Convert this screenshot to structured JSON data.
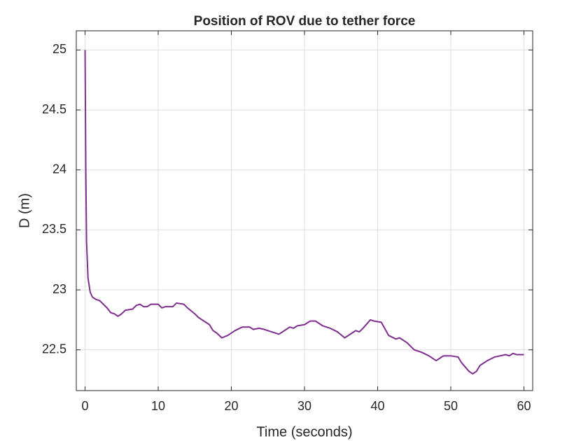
{
  "chart_data": {
    "type": "line",
    "title": "Position of ROV due to tether force",
    "xlabel": "Time (seconds)",
    "ylabel": "D (m)",
    "x": [
      0,
      0.1,
      0.2,
      0.4,
      0.7,
      1,
      1.5,
      2,
      2.5,
      3,
      3.5,
      4,
      4.5,
      5,
      5.5,
      6.5,
      7,
      7.5,
      8,
      8.5,
      9,
      10,
      10.5,
      11,
      12,
      12.5,
      13.5,
      14,
      15,
      15.5,
      16,
      17,
      17.5,
      18,
      18.7,
      19.5,
      20.5,
      21.5,
      22.5,
      23,
      23.8,
      24.5,
      25.5,
      26.5,
      27.5,
      28,
      28.5,
      29,
      30,
      30.8,
      31.5,
      32.5,
      33.5,
      34.5,
      35.5,
      36.5,
      37,
      37.5,
      38,
      39,
      39.5,
      40.5,
      41.5,
      42.5,
      43,
      44,
      45,
      46,
      47,
      48,
      48.5,
      49,
      50,
      51,
      51.5,
      52.5,
      53,
      53.5,
      54,
      55,
      56,
      57.5,
      58,
      58.5,
      59,
      60
    ],
    "series": [
      {
        "name": "D",
        "color": "#7e2f8e",
        "values": [
          25,
          24.0,
          23.4,
          23.1,
          22.98,
          22.94,
          22.92,
          22.91,
          22.88,
          22.85,
          22.81,
          22.8,
          22.78,
          22.8,
          22.83,
          22.84,
          22.87,
          22.88,
          22.86,
          22.86,
          22.88,
          22.88,
          22.85,
          22.86,
          22.86,
          22.89,
          22.88,
          22.85,
          22.8,
          22.77,
          22.75,
          22.71,
          22.66,
          22.64,
          22.6,
          22.62,
          22.66,
          22.69,
          22.69,
          22.67,
          22.68,
          22.67,
          22.65,
          22.63,
          22.67,
          22.69,
          22.68,
          22.7,
          22.71,
          22.74,
          22.74,
          22.7,
          22.68,
          22.65,
          22.6,
          22.64,
          22.66,
          22.65,
          22.68,
          22.75,
          22.74,
          22.73,
          22.62,
          22.59,
          22.6,
          22.56,
          22.5,
          22.48,
          22.45,
          22.41,
          22.43,
          22.45,
          22.45,
          22.44,
          22.39,
          22.32,
          22.3,
          22.32,
          22.37,
          22.41,
          22.44,
          22.46,
          22.45,
          22.47,
          22.46,
          22.46
        ]
      }
    ],
    "xlim": [
      -1.2,
      61.2
    ],
    "ylim": [
      22.16,
      25.16
    ],
    "xticks": [
      0,
      10,
      20,
      30,
      40,
      50,
      60
    ],
    "yticks": [
      22.5,
      23,
      23.5,
      24,
      24.5,
      25
    ],
    "grid": true
  }
}
